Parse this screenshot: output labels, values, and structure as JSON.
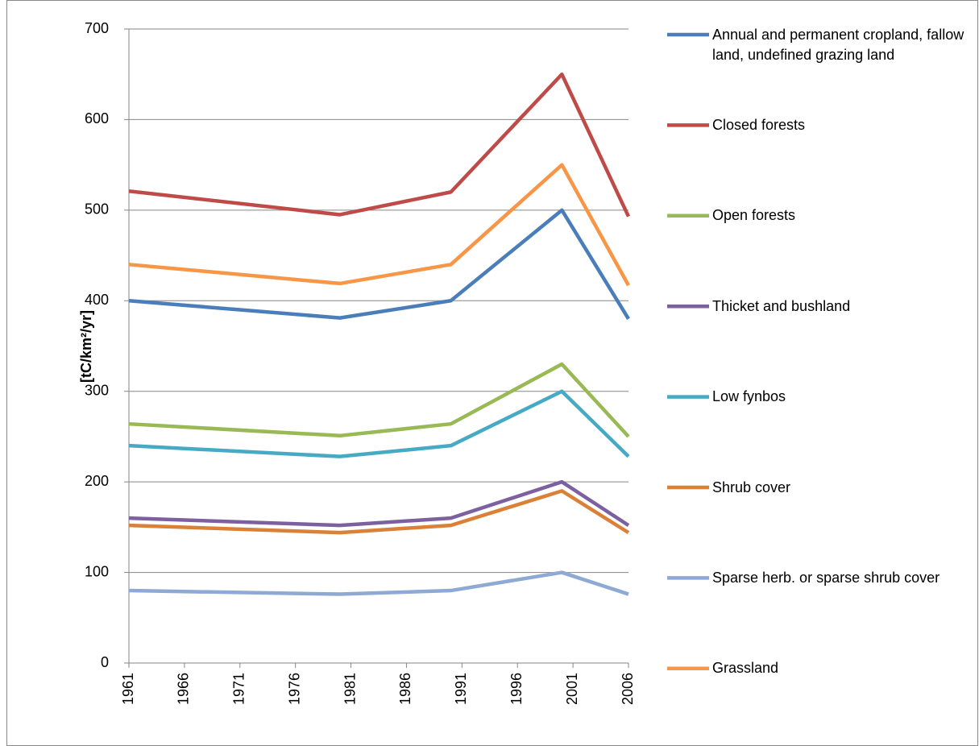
{
  "chart_data": {
    "type": "line",
    "y_label": "[tC/km²/yr]",
    "x": [
      1961,
      1980,
      1990,
      2000,
      2006
    ],
    "xlim": [
      1961,
      2006
    ],
    "xticks": [
      1961,
      1966,
      1971,
      1976,
      1981,
      1986,
      1991,
      1996,
      2001,
      2006
    ],
    "ylim": [
      0,
      700
    ],
    "yticks": [
      0,
      100,
      200,
      300,
      400,
      500,
      600,
      700
    ],
    "grid": true,
    "legend": "right",
    "series": [
      {
        "name": "Annual and permanent cropland, fallow land, undefined grazing land",
        "color": "#4a7ebb",
        "values": [
          400,
          381,
          400,
          500,
          380
        ]
      },
      {
        "name": "Closed forests",
        "color": "#be4b48",
        "values": [
          521,
          495,
          520,
          650,
          493
        ]
      },
      {
        "name": "Open forests",
        "color": "#98b954",
        "values": [
          264,
          251,
          264,
          330,
          250
        ]
      },
      {
        "name": "Thicket and bushland",
        "color": "#7d60a0",
        "values": [
          160,
          152,
          160,
          200,
          152
        ]
      },
      {
        "name": "Low fynbos",
        "color": "#46aac5",
        "values": [
          240,
          228,
          240,
          300,
          228
        ]
      },
      {
        "name": "Shrub cover",
        "color": "#da8137",
        "values": [
          152,
          144,
          152,
          190,
          144
        ]
      },
      {
        "name": "Sparse herb. or sparse shrub cover",
        "color": "#8ea9d4",
        "values": [
          80,
          76,
          80,
          100,
          76
        ]
      },
      {
        "name": "Grassland",
        "color": "#f79646",
        "values": [
          440,
          419,
          440,
          550,
          417
        ]
      }
    ]
  }
}
